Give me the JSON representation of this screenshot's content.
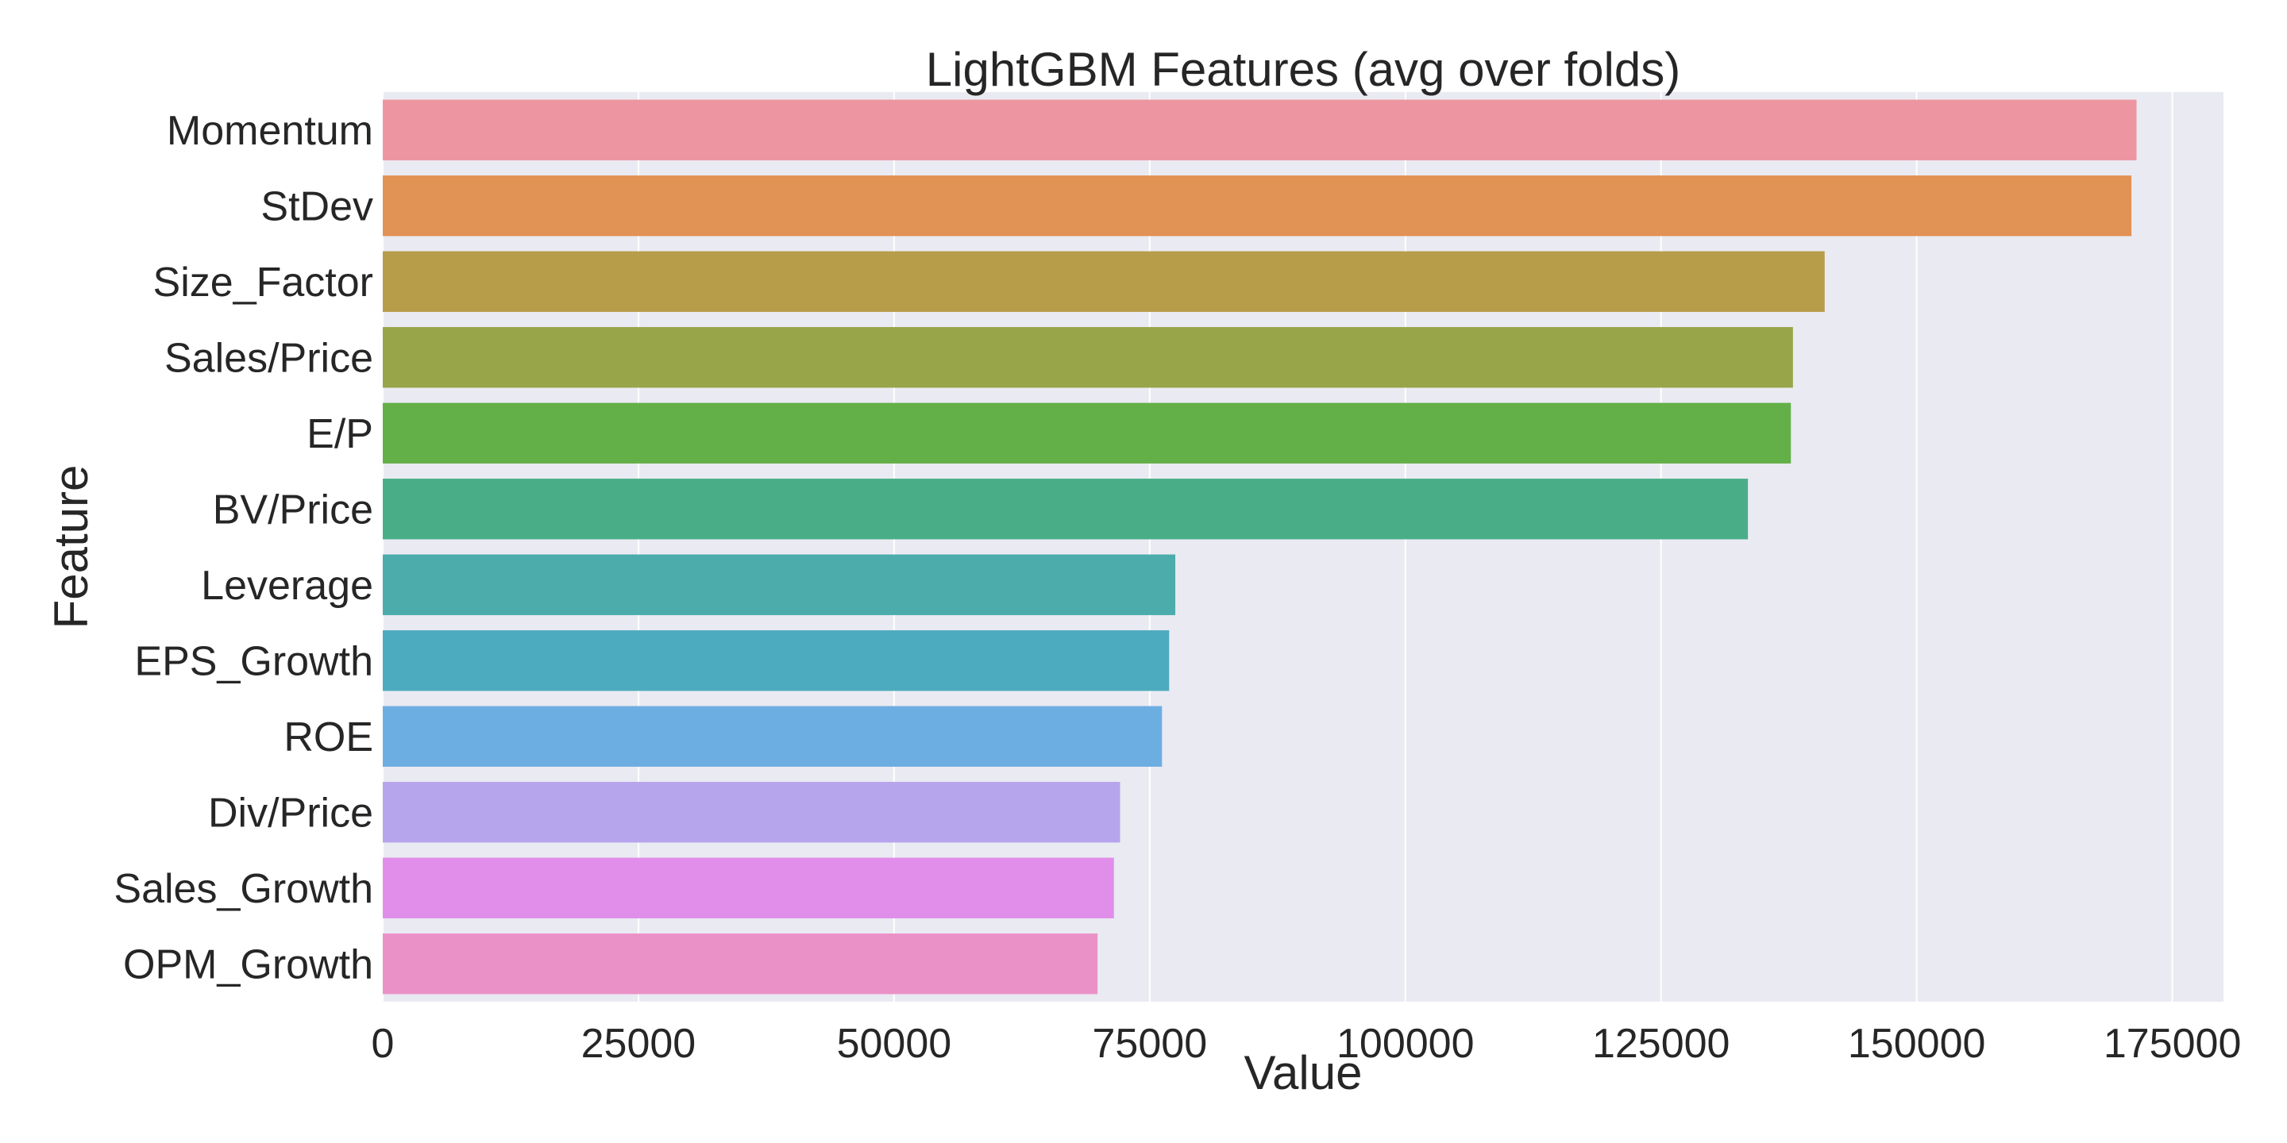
{
  "chart_data": {
    "type": "bar",
    "orientation": "horizontal",
    "title": "LightGBM Features (avg over folds)",
    "xlabel": "Value",
    "ylabel": "Feature",
    "categories": [
      "Momentum",
      "StDev",
      "Size_Factor",
      "Sales/Price",
      "E/P",
      "BV/Price",
      "Leverage",
      "EPS_Growth",
      "ROE",
      "Div/Price",
      "Sales_Growth",
      "OPM_Growth"
    ],
    "values": [
      171500,
      171000,
      141000,
      137900,
      137700,
      133500,
      77500,
      76900,
      76200,
      72100,
      71500,
      69900
    ],
    "colors": [
      "#ed96a2",
      "#e19255",
      "#b79c4a",
      "#98a548",
      "#63b048",
      "#49ae87",
      "#4bacab",
      "#4dabbf",
      "#6daee2",
      "#b6a5ed",
      "#e08ee9",
      "#ea91c8"
    ],
    "xlim": [
      0,
      180000
    ],
    "xticks": [
      0,
      25000,
      50000,
      75000,
      100000,
      125000,
      150000,
      175000
    ],
    "xtick_labels": [
      "0",
      "25000",
      "50000",
      "75000",
      "100000",
      "125000",
      "150000",
      "175000"
    ],
    "grid": true,
    "background": "#eaeaf2",
    "grid_color": "#ffffff"
  }
}
